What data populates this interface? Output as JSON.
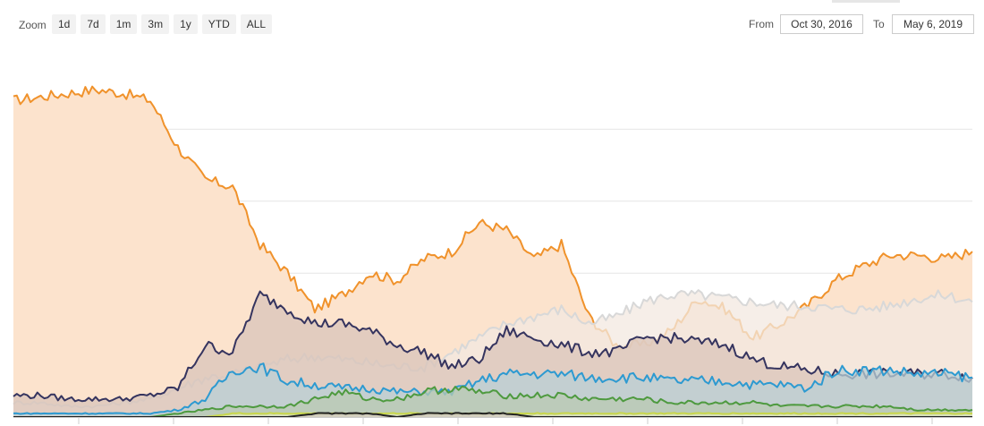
{
  "toolbar": {
    "zoom_label": "Zoom",
    "zoom_buttons": [
      "1d",
      "7d",
      "1m",
      "3m",
      "1y",
      "YTD",
      "ALL"
    ],
    "from_label": "From",
    "from_value": "Oct 30, 2016",
    "to_label": "To",
    "to_value": "May 6, 2019"
  },
  "chart_data": {
    "type": "area",
    "x_range": [
      "Oct 30, 2016",
      "May 6, 2019"
    ],
    "ylim": [
      0,
      100
    ],
    "grid": true,
    "legend": "none",
    "x_points": 36,
    "series": [
      {
        "color": "#f0922b",
        "fill": "#fce3cd",
        "values": [
          88,
          89,
          90,
          91,
          90,
          88,
          75,
          66,
          64,
          48,
          40,
          30,
          34,
          40,
          38,
          44,
          46,
          54,
          52,
          44,
          48,
          28,
          20,
          20,
          24,
          33,
          30,
          22,
          26,
          31,
          38,
          42,
          45,
          45,
          44,
          46
        ]
      },
      {
        "color": "#d8d8d8",
        "fill": "#f3e8e0",
        "values": [
          4,
          4,
          3,
          3,
          4,
          5,
          8,
          11,
          12,
          14,
          16,
          17,
          16,
          15,
          14,
          14,
          18,
          22,
          26,
          28,
          30,
          26,
          28,
          32,
          34,
          34,
          33,
          32,
          31,
          31,
          30,
          30,
          31,
          33,
          34,
          32
        ]
      },
      {
        "color": "#35345f",
        "fill": "#d9c4ba",
        "values": [
          6,
          6,
          5,
          5,
          5,
          6,
          8,
          20,
          18,
          34,
          30,
          26,
          26,
          24,
          20,
          18,
          14,
          16,
          24,
          22,
          20,
          18,
          18,
          22,
          22,
          21,
          20,
          16,
          14,
          13,
          12,
          12,
          12,
          12,
          12,
          11
        ]
      },
      {
        "color": "#2d9ad1",
        "fill": "#b8cfd6",
        "values": [
          1,
          1,
          1,
          1,
          1,
          1,
          2,
          5,
          13,
          14,
          10,
          9,
          8,
          8,
          7,
          7,
          7,
          10,
          12,
          12,
          12,
          11,
          11,
          11,
          10,
          10,
          10,
          9,
          9,
          8,
          13,
          13,
          13,
          12,
          12,
          11
        ]
      },
      {
        "color": "#4e9a3f",
        "fill": "#b9c9b2",
        "values": [
          0,
          0,
          0,
          0,
          0,
          0,
          1,
          2,
          3,
          3,
          3,
          5,
          7,
          5,
          5,
          7,
          8,
          7,
          6,
          6,
          6,
          5,
          5,
          5,
          4,
          4,
          4,
          4,
          3,
          3,
          3,
          3,
          3,
          2,
          2,
          2
        ]
      },
      {
        "color": "#c8d64c",
        "fill": "#dfe6b8",
        "values": [
          0,
          0,
          0,
          0,
          0,
          0,
          0,
          0,
          1,
          1,
          1,
          1,
          1,
          1,
          1,
          1,
          1,
          1,
          1,
          1,
          1,
          1,
          1,
          1,
          1,
          1,
          1,
          1,
          1,
          1,
          1,
          1,
          1,
          1,
          1,
          1
        ]
      },
      {
        "color": "#222222",
        "fill": "#cfc7bf",
        "values": [
          0,
          0,
          0,
          0,
          0,
          0,
          0,
          0,
          0,
          0,
          0,
          1,
          1,
          1,
          0,
          1,
          1,
          1,
          1,
          0,
          0,
          0,
          0,
          0,
          0,
          0,
          0,
          0,
          0,
          0,
          0,
          0,
          0,
          0,
          0,
          0
        ]
      }
    ]
  }
}
